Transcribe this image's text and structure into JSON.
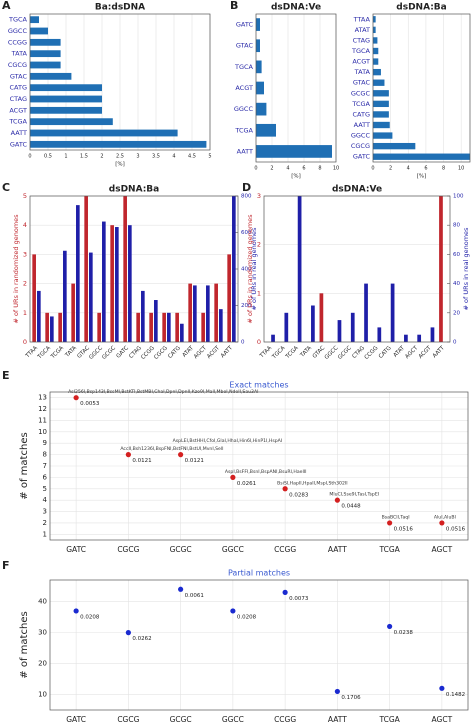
{
  "chart_data": [
    {
      "panel": "A",
      "type": "barh",
      "title": "Ba:dsDNA",
      "xlabel": "[%]",
      "color": "#1f6fb4",
      "grid": true,
      "categories": [
        "TGCA",
        "GGCC",
        "CCGG",
        "TATA",
        "CGCG",
        "GTAC",
        "CATG",
        "CTAG",
        "ACGT",
        "TCGA",
        "AATT",
        "GATC"
      ],
      "values": [
        0.25,
        0.5,
        0.85,
        0.85,
        0.85,
        1.15,
        2,
        2,
        2,
        2.3,
        4.1,
        4.9
      ],
      "xlim": [
        0,
        5
      ],
      "xticks": [
        0,
        0.5,
        1,
        1.5,
        2,
        2.5,
        3,
        3.5,
        4,
        4.5,
        5
      ]
    },
    {
      "panel": "B",
      "type": "barh",
      "title": "dsDNA:Ve",
      "xlabel": "[%]",
      "color": "#1f6fb4",
      "grid": true,
      "categories": [
        "GATC",
        "GTAC",
        "TGCA",
        "ACGT",
        "GGCC",
        "TCGA",
        "AATT"
      ],
      "values": [
        0.5,
        0.5,
        0.7,
        1,
        1.3,
        2.5,
        9.5
      ],
      "xlim": [
        0,
        10
      ],
      "xticks": [
        0,
        2,
        4,
        6,
        8,
        10
      ]
    },
    {
      "type": "barh",
      "title": "dsDNA:Ba",
      "xlabel": "[%]",
      "color": "#1f6fb4",
      "grid": true,
      "categories": [
        "TTAA",
        "ATAT",
        "CTAG",
        "TGCA",
        "ACGT",
        "TATA",
        "GTAC",
        "GCGC",
        "TCGA",
        "CATG",
        "AATT",
        "GGCC",
        "CGCG",
        "GATC"
      ],
      "values": [
        0.3,
        0.3,
        0.5,
        0.6,
        0.6,
        0.9,
        1.3,
        1.8,
        1.8,
        1.8,
        1.9,
        2.2,
        4.8,
        11
      ],
      "xlim": [
        0,
        11
      ],
      "xticks": [
        0,
        2,
        4,
        6,
        8,
        10
      ]
    },
    {
      "panel": "C",
      "type": "bar",
      "title": "dsDNA:Ba",
      "grid": true,
      "categories": [
        "TTAA",
        "TGCA",
        "TCGA",
        "TATA",
        "GTAC",
        "GGCC",
        "GCGC",
        "GATC",
        "CTAG",
        "CCGG",
        "CGCG",
        "CATG",
        "ATAT",
        "AGCT",
        "ACGT",
        "AATT"
      ],
      "series": [
        {
          "name": "# of URs in randomized genomes",
          "color": "#c0262d",
          "values": [
            3,
            1,
            1,
            2,
            5,
            1,
            4,
            5,
            1,
            1,
            1,
            1,
            2,
            1,
            2,
            3
          ]
        },
        {
          "name": "# of URs in real genomes",
          "color": "#1f1fa8",
          "axis": "y2",
          "values": [
            280,
            140,
            500,
            750,
            490,
            660,
            630,
            640,
            280,
            230,
            160,
            100,
            310,
            310,
            180,
            800
          ]
        }
      ],
      "ylim": [
        0,
        5
      ],
      "yticks": [
        0,
        1,
        2,
        3,
        4,
        5
      ],
      "y2lim": [
        0,
        800
      ],
      "y2ticks": [
        0,
        200,
        400,
        600,
        800
      ]
    },
    {
      "panel": "D",
      "type": "bar",
      "title": "dsDNA:Ve",
      "grid": true,
      "categories": [
        "TTAA",
        "TGCA",
        "TCGA",
        "TATA",
        "GTAC",
        "GGCC",
        "GCGC",
        "CTAG",
        "CCGG",
        "CATG",
        "ATAT",
        "AGCT",
        "ACGT",
        "AATT"
      ],
      "series": [
        {
          "name": "# of URs in randomized genomes",
          "color": "#c0262d",
          "values": [
            0,
            0,
            0,
            0,
            1,
            0,
            0,
            0,
            0,
            0,
            0,
            0,
            0,
            3
          ]
        },
        {
          "name": "# of URs in real genomes",
          "color": "#1f1fa8",
          "axis": "y2",
          "values": [
            5,
            20,
            100,
            25,
            0,
            15,
            20,
            40,
            10,
            40,
            5,
            5,
            10,
            0
          ]
        }
      ],
      "ylim": [
        0,
        3
      ],
      "yticks": [
        0,
        1,
        2,
        3
      ],
      "y2lim": [
        0,
        100
      ],
      "y2ticks": [
        0,
        20,
        40,
        60,
        80,
        100
      ]
    },
    {
      "panel": "E",
      "type": "scatter",
      "title": "Exact matches",
      "ylabel": "# of matches",
      "color": "#d42020",
      "grid": true,
      "categories": [
        "GATC",
        "CGCG",
        "GCGC",
        "GGCC",
        "CCGG",
        "AATT",
        "TCGA",
        "AGCT"
      ],
      "values": [
        13,
        8,
        8,
        6,
        5,
        4,
        2,
        2
      ],
      "point_labels": [
        "0.0053",
        "0.0121",
        "0.0121",
        "0.0261",
        "0.0283",
        "0.0448",
        "0.0516",
        "0.0516"
      ],
      "enzymes": [
        "AsI256I,Bsp143I,BssMI,BstKTI,BstMBI,ChaI,DpnI,DpnII,Kzo9I,MalI,MboI,NdeII,Sau3AI",
        "AccII,Bsh1236I,BspFNI,BstFNI,BstUI,MvnI,SelI",
        "AspLEI,BstHHI,CfoI,GlaI,HhaI,Hin6I,HinP1I,HspAI",
        "AspI,BsFFI,BsnI,BspANI,BsuRI,HaeIII",
        "BsiSI,HapII,HpaII,MspI,Sth302II",
        "MluCI,Sse9I,TasI,TspEI",
        "BsaBCII,TaqI",
        "AluI,AluBI"
      ],
      "ylim": [
        0.5,
        13.5
      ],
      "yticks": [
        1,
        2,
        3,
        4,
        5,
        6,
        7,
        8,
        9,
        10,
        11,
        12,
        13
      ]
    },
    {
      "panel": "F",
      "type": "scatter",
      "title": "Partial matches",
      "ylabel": "# of matches",
      "color": "#1a2ad0",
      "grid": true,
      "categories": [
        "GATC",
        "CGCG",
        "GCGC",
        "GGCC",
        "CCGG",
        "AATT",
        "TCGA",
        "AGCT"
      ],
      "values": [
        37,
        30,
        44,
        37,
        43,
        11,
        32,
        12
      ],
      "point_labels": [
        "0.0208",
        "0.0262",
        "0.0061",
        "0.0208",
        "0.0073",
        "0.1706",
        "0.0238",
        "0.1482"
      ],
      "ylim": [
        5,
        47
      ],
      "yticks": [
        10,
        20,
        30,
        40
      ]
    }
  ]
}
